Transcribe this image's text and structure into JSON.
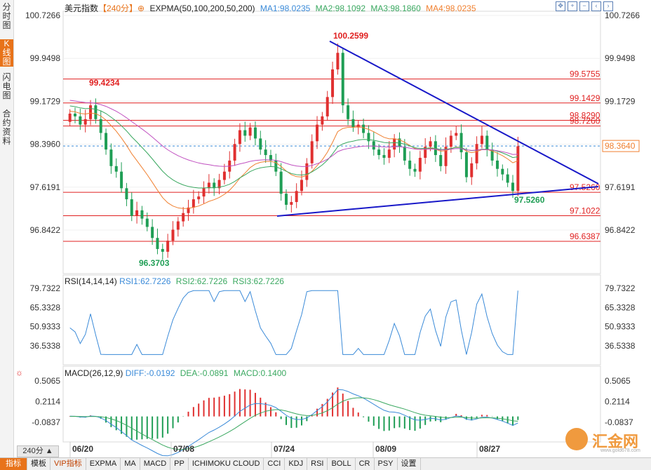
{
  "sidebar": {
    "tabs": [
      {
        "label": "分时图",
        "active": false
      },
      {
        "label": "K线图",
        "active": true
      },
      {
        "label": "闪电图",
        "active": false
      },
      {
        "label": "合约资料",
        "active": false
      }
    ]
  },
  "main_header": {
    "name": "美元指数",
    "period": "【240分】",
    "indicator": "EXPMA(50,100,200,50,200)",
    "ma1": "MA1:98.0235",
    "ma2": "MA2:98.1092",
    "ma3": "MA3:98.1860",
    "ma4": "MA4:98.0235"
  },
  "rsi_header": {
    "name": "RSI(14,14,14)",
    "rsi1": "RSI1:62.7226",
    "rsi2": "RSI2:62.7226",
    "rsi3": "RSI3:62.7226"
  },
  "macd_header": {
    "name": "MACD(26,12,9)",
    "diff": "DIFF:-0.0192",
    "dea": "DEA:-0.0891",
    "macd": "MACD:0.1400"
  },
  "price_axis": {
    "ticks": [
      "100.7266",
      "99.9498",
      "99.1729",
      "98.3960",
      "97.6191",
      "96.8422"
    ],
    "current": "98.3640"
  },
  "rsi_axis": {
    "ticks": [
      "79.7322",
      "65.3328",
      "50.9333",
      "36.5338"
    ]
  },
  "macd_axis": {
    "ticks": [
      "0.5065",
      "0.2114",
      "-0.0837"
    ]
  },
  "levels": [
    {
      "label": "99.5755",
      "value": 99.5755
    },
    {
      "label": "99.1429",
      "value": 99.1429
    },
    {
      "label": "98.8290",
      "value": 98.829
    },
    {
      "label": "98.7260",
      "value": 98.726
    },
    {
      "label": "97.5260",
      "value": 97.526
    },
    {
      "label": "97.1022",
      "value": 97.1022
    },
    {
      "label": "96.6387",
      "value": 96.6387
    }
  ],
  "annotations": {
    "high": "100.2599",
    "low": "96.3703",
    "left_high": "99.4234",
    "triangle_point": "97.5260"
  },
  "dates": [
    "06/20",
    "07/08",
    "07/24",
    "08/09",
    "08/27"
  ],
  "period_button": "240分 ▲",
  "bottom_tabs": [
    "指标",
    "模板",
    "VIP指标",
    "EXPMA",
    "MA",
    "MACD",
    "PP",
    "ICHIMOKU CLOUD",
    "CCI",
    "KDJ",
    "RSI",
    "BOLL",
    "CR",
    "PSY",
    "设置"
  ],
  "top_icons": [
    "expand-icon",
    "zoom-in-icon",
    "zoom-out-icon",
    "left-icon",
    "right-icon"
  ],
  "watermark": {
    "text": "汇金网",
    "sub": "www.gold678.com"
  },
  "colors": {
    "up": "#e03030",
    "down": "#1f9e55",
    "level": "#e02020",
    "trend": "#1818c8",
    "ema50": "#f08030",
    "ema100": "#3aa860",
    "ema200": "#c050c0"
  },
  "chart_data": {
    "type": "candlestick",
    "series_close": [
      98.95,
      98.9,
      98.75,
      98.85,
      99.1,
      98.85,
      98.6,
      98.3,
      98.0,
      97.9,
      97.6,
      97.4,
      97.1,
      97.2,
      97.05,
      96.9,
      96.7,
      96.5,
      96.45,
      96.65,
      96.85,
      97.0,
      97.15,
      97.25,
      97.4,
      97.45,
      97.6,
      97.7,
      97.6,
      97.75,
      97.9,
      98.1,
      98.4,
      98.65,
      98.55,
      98.7,
      98.5,
      98.3,
      98.2,
      98.1,
      97.9,
      97.5,
      97.3,
      97.35,
      97.55,
      97.75,
      98.05,
      98.45,
      98.75,
      98.9,
      99.25,
      99.75,
      100.05,
      99.1,
      98.85,
      98.7,
      98.75,
      98.6,
      98.45,
      98.3,
      98.2,
      98.15,
      98.3,
      98.5,
      98.35,
      98.1,
      97.95,
      97.9,
      98.15,
      98.35,
      98.45,
      98.2,
      98.0,
      98.35,
      98.55,
      98.6,
      98.25,
      97.8,
      98.05,
      98.4,
      98.55,
      98.3,
      98.1,
      97.95,
      97.85,
      97.7,
      97.55,
      98.36
    ],
    "price_range": [
      96.3703,
      100.2599
    ],
    "rsi_range": [
      25,
      85
    ],
    "macd_range": [
      -0.25,
      0.62
    ]
  }
}
